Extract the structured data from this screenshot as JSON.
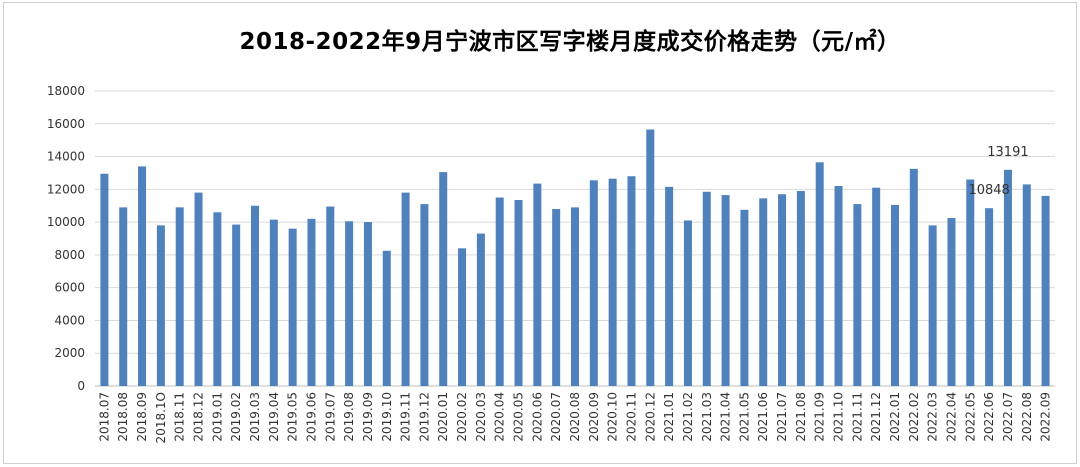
{
  "chart_data": {
    "type": "bar",
    "title": "2018-2022年9月宁波市区写字楼月度成交价格走势（元/㎡）",
    "xlabel": "",
    "ylabel": "",
    "ylim": [
      0,
      18000
    ],
    "yticks": [
      0,
      2000,
      4000,
      6000,
      8000,
      10000,
      12000,
      14000,
      16000,
      18000
    ],
    "grid": true,
    "legend": "none",
    "bar_color": "#4f81bd",
    "categories": [
      "2018.07",
      "2018.08",
      "2018.09",
      "2018.1O",
      "2018.11",
      "2018.12",
      "2019.01",
      "2019.02",
      "2019.03",
      "2019.04",
      "2019.05",
      "2019.06",
      "2019.07",
      "2019.08",
      "2019.09",
      "2019.10",
      "2019.11",
      "2019.12",
      "2020.01",
      "2020.02",
      "2020.03",
      "2020.04",
      "2020.05",
      "2020.06",
      "2020.07",
      "2020.08",
      "2020.09",
      "2020.10",
      "2020.11",
      "2020.12",
      "2021.01",
      "2021.02",
      "2021.03",
      "2021.04",
      "2021.05",
      "2021.06",
      "2021.07",
      "2021.08",
      "2021.09",
      "2021.10",
      "2021.11",
      "2021.12",
      "2022.01",
      "2022.02",
      "2022.03",
      "2022.04",
      "2022.05",
      "2022.06",
      "2022.07",
      "2022.08",
      "2022.09"
    ],
    "values": [
      12950,
      10900,
      13400,
      9800,
      10900,
      11800,
      10600,
      9850,
      11000,
      10150,
      9600,
      10200,
      10950,
      10050,
      10000,
      8250,
      11800,
      11100,
      13050,
      8400,
      9300,
      11500,
      11350,
      12350,
      10800,
      10900,
      12550,
      12650,
      12800,
      15650,
      12150,
      10100,
      11850,
      11650,
      10750,
      11450,
      11700,
      11900,
      13650,
      12200,
      11100,
      12100,
      11050,
      13250,
      9800,
      10250,
      12600,
      10848,
      13191,
      12300,
      11600
    ],
    "data_labels": [
      {
        "category": "2022.06",
        "text": "10848"
      },
      {
        "category": "2022.07",
        "text": "13191"
      }
    ]
  }
}
